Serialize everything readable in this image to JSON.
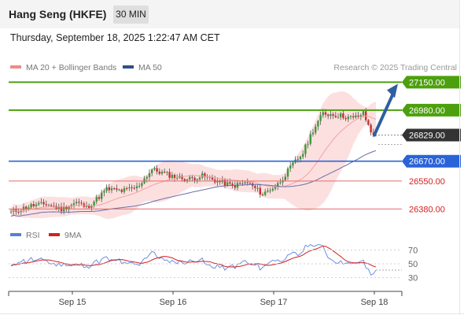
{
  "header": {
    "title": "Hang Seng (HKFE)",
    "timeframe": "30 MIN",
    "timestamp": "Thursday, September 18, 2025 1:22:47 AM CET"
  },
  "legend": {
    "ma20_label": "MA 20 + Bollinger Bands",
    "ma50_label": "MA 50",
    "copyright": "Research © 2025 Trading Central",
    "rsi_label": "RSI",
    "rsi_ma_label": "9MA"
  },
  "colors": {
    "green": "#4ca00e",
    "blue": "#2a63d8",
    "red": "#e46b6b",
    "dark": "#333333",
    "band": "#fbd6d6",
    "ma20": "#f5a0a0",
    "ma50": "#6a6fa8",
    "arrow": "#2f5fa0",
    "candle_up": "#3a9a3a",
    "candle_down": "#c83030"
  },
  "chart_data": [
    {
      "type": "candlestick",
      "ylim": [
        26310,
        27190
      ],
      "x_ticks": [
        "Sep 15",
        "Sep 16",
        "Sep 17",
        "Sep 18"
      ],
      "levels": [
        {
          "value": 27150,
          "label": "27150.00",
          "style": "green",
          "kind": "resistance"
        },
        {
          "value": 26980,
          "label": "26980.00",
          "style": "green",
          "kind": "resistance"
        },
        {
          "value": 26829,
          "label": "26829.00",
          "style": "dark",
          "kind": "last_price"
        },
        {
          "value": 26670,
          "label": "26670.00",
          "style": "blue",
          "kind": "pivot"
        },
        {
          "value": 26550,
          "label": "26550.00",
          "style": "red",
          "kind": "support"
        },
        {
          "value": 26380,
          "label": "26380.00",
          "style": "red",
          "kind": "support"
        }
      ],
      "series": [
        {
          "name": "MA 20 + Bollinger Bands",
          "type": "line_with_band"
        },
        {
          "name": "MA 50",
          "type": "line"
        }
      ],
      "forecast_arrow": {
        "from": 26829,
        "to": 27150
      }
    },
    {
      "type": "line",
      "ylim": [
        10,
        90
      ],
      "y_ticks": [
        70,
        50,
        30
      ],
      "series": [
        {
          "name": "RSI"
        },
        {
          "name": "9MA"
        }
      ]
    }
  ]
}
